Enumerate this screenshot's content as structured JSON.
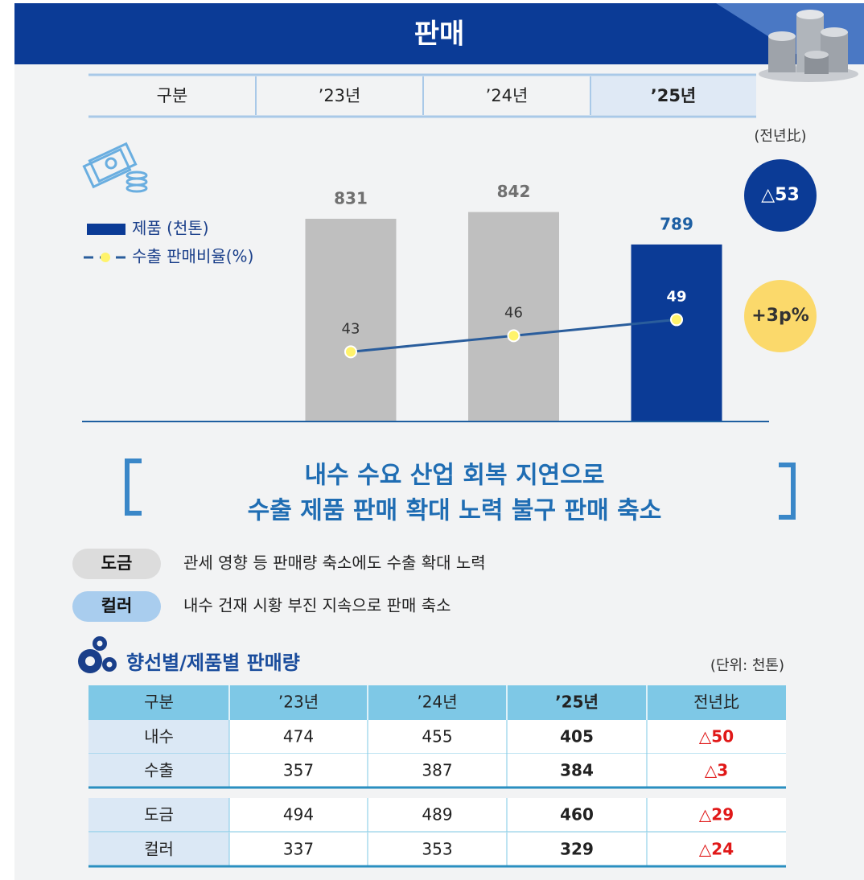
{
  "header": {
    "title": "판매",
    "row_label": "구분"
  },
  "chart_data": {
    "type": "combo",
    "categories": [
      "’23년",
      "’24년",
      "’25년"
    ],
    "series": [
      {
        "name": "제품 (천톤)",
        "type": "bar",
        "color": "#0b3b96",
        "colors": [
          "#bfbfbf",
          "#bfbfbf",
          "#0b3b96"
        ],
        "label_colors": [
          "#707070",
          "#707070",
          "#1e5fa3"
        ],
        "values": [
          831,
          842,
          789
        ]
      },
      {
        "name": "수출 판매비율(%)",
        "type": "line",
        "axis": "y2",
        "color": "#2a5d9c",
        "marker_color": "#fff36b",
        "label_colors": [
          "#333333",
          "#333333",
          "#ffffff"
        ],
        "values": [
          43,
          46,
          49
        ]
      }
    ],
    "ylim": [
      500,
      850
    ],
    "y2lim": [
      30,
      70
    ],
    "grid": false,
    "badge_caption": "(전년比)",
    "badges": [
      {
        "text": "△53",
        "color": "#0b3b96",
        "text_color": "#ffffff"
      },
      {
        "text": "+3p%",
        "color": "#fbd96b",
        "text_color": "#333333"
      }
    ]
  },
  "summary": {
    "lines": [
      "내수 수요 산업 회복 지연으로",
      "수출 제품  판매 확대 노력 불구 판매 축소"
    ]
  },
  "notes": [
    {
      "tag": "도금",
      "text": "관세 영향 등 판매량 축소에도 수출 확대 노력",
      "color": "#dcdcdc"
    },
    {
      "tag": "컬러",
      "text": "내수 건재 시황 부진 지속으로 판매  축소",
      "color": "#a9cdee"
    }
  ],
  "table": {
    "title": "향선별/제품별 판매량",
    "unit": "(단위: 천톤)",
    "header": [
      "구분",
      "’23년",
      "’24년",
      "’25년",
      "전년比"
    ],
    "rows": [
      [
        "내수",
        474,
        455,
        405,
        "△50"
      ],
      [
        "수출",
        357,
        387,
        384,
        "△3"
      ],
      [
        "도금",
        494,
        489,
        460,
        "△29"
      ],
      [
        "컬러",
        337,
        353,
        329,
        "△24"
      ]
    ]
  }
}
